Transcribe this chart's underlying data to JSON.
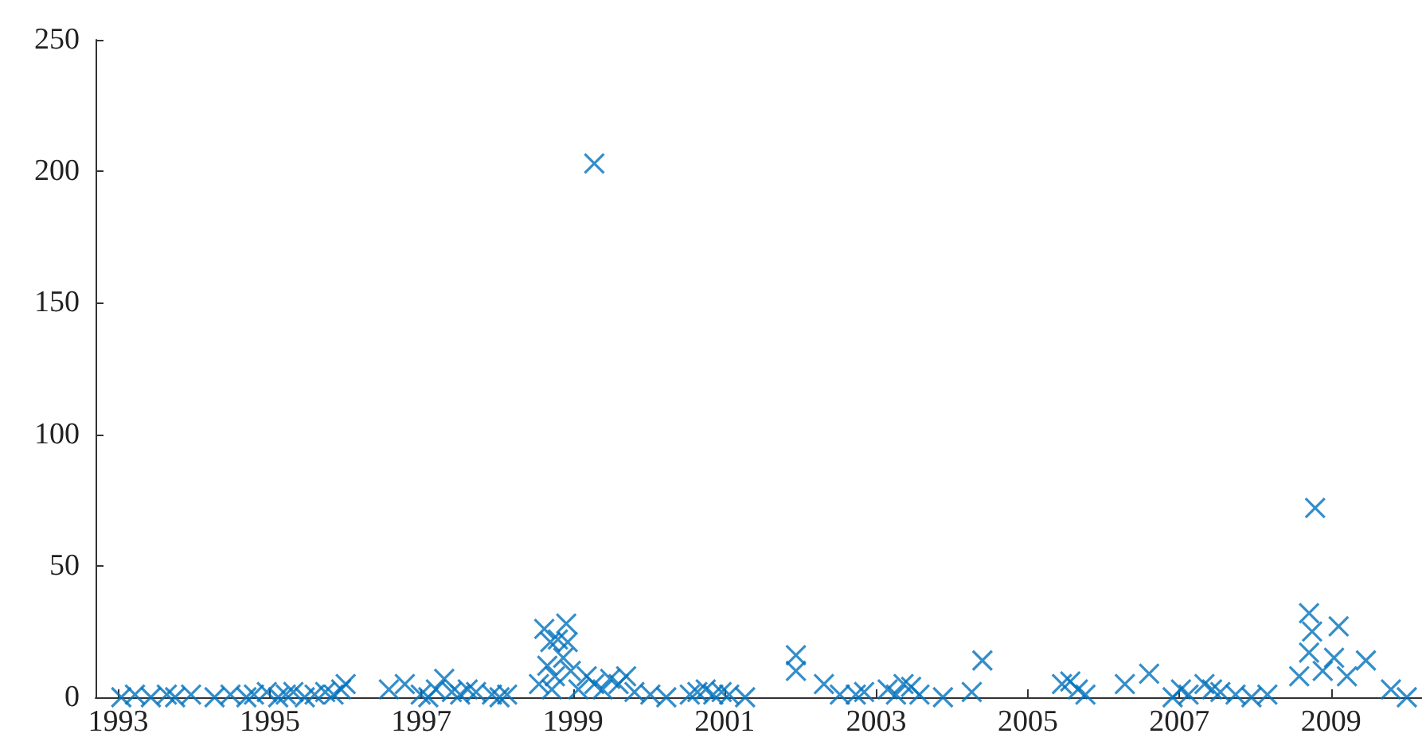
{
  "chart_data": {
    "type": "scatter",
    "marker": "cross",
    "grid": false,
    "xlim": [
      1992.7,
      2010.2
    ],
    "xticks": [
      1993,
      1995,
      1997,
      1999,
      2001,
      2003,
      2005,
      2007,
      2009
    ],
    "ylim": [
      0,
      250
    ],
    "yticks": [
      0,
      50,
      100,
      150,
      200,
      250
    ],
    "series": [
      {
        "color": "#0072bd",
        "x": [
          1993.04,
          1993.22,
          1993.43,
          1993.64,
          1993.75,
          1993.96,
          1994.27,
          1994.48,
          1994.69,
          1994.79,
          1994.96,
          1995.11,
          1995.21,
          1995.31,
          1995.46,
          1995.59,
          1995.73,
          1995.84,
          1995.94,
          1996.0,
          1996.57,
          1996.78,
          1996.99,
          1997.09,
          1997.19,
          1997.3,
          1997.4,
          1997.51,
          1997.61,
          1997.72,
          1997.93,
          1998.03,
          1998.13,
          1998.55,
          1998.62,
          1998.66,
          1998.7,
          1998.72,
          1998.76,
          1998.8,
          1998.87,
          1998.91,
          1998.93,
          1998.97,
          1999.07,
          1999.18,
          1999.28,
          1999.28,
          1999.39,
          1999.49,
          1999.6,
          1999.7,
          1999.81,
          2000.02,
          2000.23,
          2000.54,
          2000.64,
          2000.75,
          2000.85,
          2000.96,
          2001.06,
          2001.27,
          2001.94,
          2001.94,
          2002.31,
          2002.52,
          2002.73,
          2002.84,
          2003.15,
          2003.26,
          2003.36,
          2003.46,
          2003.57,
          2003.88,
          2004.26,
          2004.4,
          2005.45,
          2005.56,
          2005.66,
          2005.76,
          2006.28,
          2006.6,
          2006.91,
          2007.02,
          2007.12,
          2007.33,
          2007.43,
          2007.54,
          2007.74,
          2007.95,
          2008.16,
          2008.58,
          2008.71,
          2008.71,
          2008.75,
          2008.79,
          2008.89,
          2009.04,
          2009.1,
          2009.21,
          2009.46,
          2009.79,
          2010.0
        ],
        "values": [
          0,
          1,
          0,
          1,
          0,
          1,
          0,
          1,
          0,
          1,
          2,
          0,
          1,
          2,
          0,
          1,
          2,
          1,
          3,
          5,
          3,
          5,
          1,
          0,
          3,
          7,
          2,
          1,
          3,
          2,
          1,
          0,
          1,
          5,
          26,
          12,
          21,
          3,
          8,
          22,
          15,
          28,
          21,
          10,
          3,
          8,
          5,
          203,
          3,
          7,
          5,
          8,
          2,
          1,
          0,
          1,
          2,
          3,
          1,
          2,
          1,
          0,
          16,
          10,
          5,
          1,
          1,
          2,
          3,
          1,
          5,
          4,
          1,
          0,
          2,
          14,
          5,
          6,
          3,
          1,
          5,
          9,
          0,
          3,
          1,
          5,
          3,
          2,
          1,
          0,
          1,
          8,
          32,
          17,
          25,
          72,
          10,
          15,
          27,
          8,
          14,
          3,
          0
        ]
      }
    ]
  }
}
